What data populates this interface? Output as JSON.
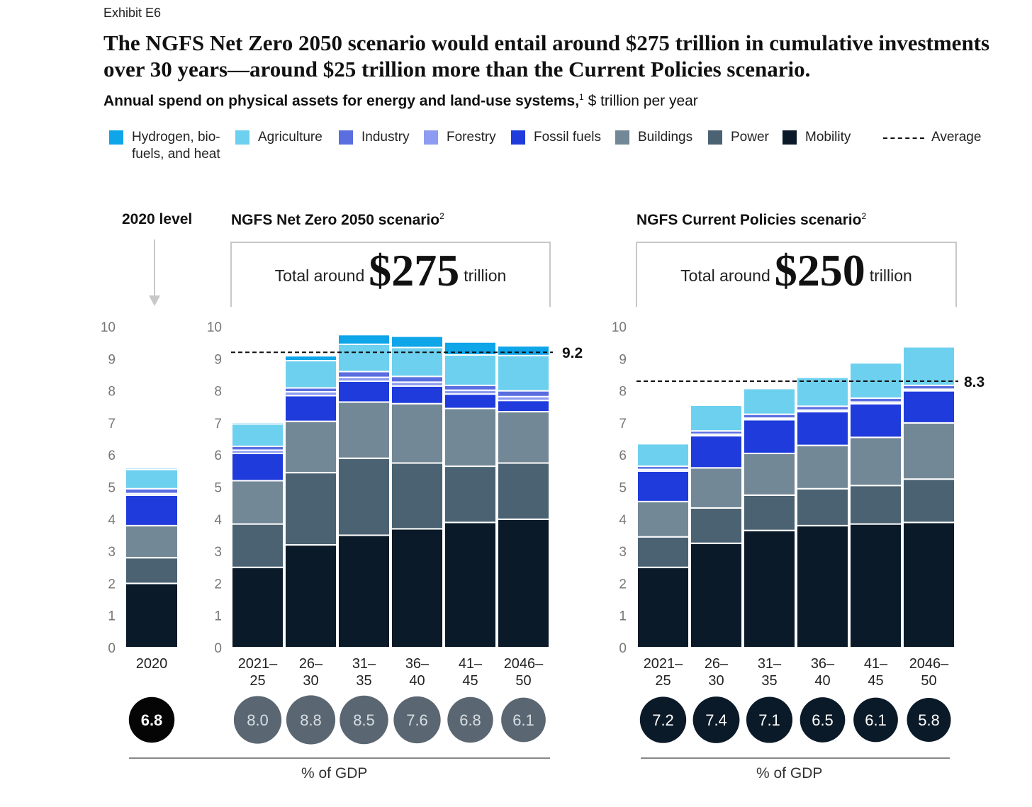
{
  "exhibit": "Exhibit E6",
  "title": "The NGFS Net Zero 2050 scenario would entail around $275 trillion in cumulative investments over 30 years—around $25 trillion more than the Current Policies scenario.",
  "subtitle": {
    "bold": "Annual spend on physical assets for energy and land-use systems,",
    "footnote": "1",
    "rest": " $ trillion per year"
  },
  "legend": {
    "items": [
      {
        "label": "Hydrogen, bio-\nfuels, and heat",
        "color": "#0ea5e9"
      },
      {
        "label": "Agriculture",
        "color": "#6dd0ee"
      },
      {
        "label": "Industry",
        "color": "#5a6ee0"
      },
      {
        "label": "Forestry",
        "color": "#8d9cf0"
      },
      {
        "label": "Fossil fuels",
        "color": "#1f3bdc"
      },
      {
        "label": "Buildings",
        "color": "#738896"
      },
      {
        "label": "Power",
        "color": "#4b6272"
      },
      {
        "label": "Mobility",
        "color": "#0b1a28"
      }
    ],
    "average_label": "Average"
  },
  "panels": {
    "level2020": {
      "title": "2020 level"
    },
    "netzero": {
      "title": "NGFS Net Zero 2050 scenario",
      "footnote": "2",
      "total_prefix": "Total around",
      "total_value": "$275",
      "total_suffix": "trillion"
    },
    "current": {
      "title": "NGFS Current Policies scenario",
      "footnote": "2",
      "total_prefix": "Total around",
      "total_value": "$250",
      "total_suffix": "trillion"
    }
  },
  "gdp_label": "% of GDP",
  "chart_data": [
    {
      "type": "bar",
      "stacked": true,
      "name": "2020 level",
      "ylim": [
        0,
        10
      ],
      "yticks": [
        "0",
        "1",
        "2",
        "3",
        "4",
        "5",
        "6",
        "7",
        "8",
        "9",
        "10"
      ],
      "categories": [
        [
          "2020"
        ]
      ],
      "series_order": [
        "Mobility",
        "Power",
        "Buildings",
        "Fossil fuels",
        "Forestry",
        "Industry",
        "Agriculture",
        "Hydrogen, bio-fuels, and heat"
      ],
      "series": [
        {
          "name": "Mobility",
          "values": [
            2.0
          ]
        },
        {
          "name": "Power",
          "values": [
            0.8
          ]
        },
        {
          "name": "Buildings",
          "values": [
            1.0
          ]
        },
        {
          "name": "Fossil fuels",
          "values": [
            0.95
          ]
        },
        {
          "name": "Forestry",
          "values": [
            0.05
          ]
        },
        {
          "name": "Industry",
          "values": [
            0.15
          ]
        },
        {
          "name": "Agriculture",
          "values": [
            0.6
          ]
        },
        {
          "name": "Hydrogen, bio-fuels, and heat",
          "values": [
            0.05
          ]
        }
      ],
      "gdp_percent": [
        "6.8"
      ],
      "gdp_style": "black"
    },
    {
      "type": "bar",
      "stacked": true,
      "name": "NGFS Net Zero 2050 scenario",
      "ylim": [
        0,
        10
      ],
      "yticks": [
        "0",
        "1",
        "2",
        "3",
        "4",
        "5",
        "6",
        "7",
        "8",
        "9",
        "10"
      ],
      "categories": [
        [
          "2021–",
          "25"
        ],
        [
          "26–",
          "30"
        ],
        [
          "31–",
          "35"
        ],
        [
          "36–",
          "40"
        ],
        [
          "41–",
          "45"
        ],
        [
          "2046–",
          "50"
        ]
      ],
      "series": [
        {
          "name": "Mobility",
          "values": [
            2.5,
            3.2,
            3.5,
            3.7,
            3.9,
            4.0
          ]
        },
        {
          "name": "Power",
          "values": [
            1.35,
            2.25,
            2.4,
            2.05,
            1.75,
            1.75
          ]
        },
        {
          "name": "Buildings",
          "values": [
            1.35,
            1.6,
            1.75,
            1.85,
            1.8,
            1.6
          ]
        },
        {
          "name": "Fossil fuels",
          "values": [
            0.85,
            0.8,
            0.65,
            0.55,
            0.45,
            0.35
          ]
        },
        {
          "name": "Forestry",
          "values": [
            0.1,
            0.12,
            0.12,
            0.12,
            0.12,
            0.12
          ]
        },
        {
          "name": "Industry",
          "values": [
            0.12,
            0.12,
            0.18,
            0.18,
            0.15,
            0.18
          ]
        },
        {
          "name": "Agriculture",
          "values": [
            0.7,
            0.85,
            0.85,
            0.9,
            0.95,
            1.1
          ]
        },
        {
          "name": "Hydrogen, bio-fuels, and heat",
          "values": [
            0.05,
            0.15,
            0.3,
            0.35,
            0.4,
            0.3
          ]
        }
      ],
      "average": 9.2,
      "average_label": "9.2",
      "gdp_percent": [
        "8.0",
        "8.8",
        "8.5",
        "7.6",
        "6.8",
        "6.1"
      ],
      "gdp_style": "gray"
    },
    {
      "type": "bar",
      "stacked": true,
      "name": "NGFS Current Policies scenario",
      "ylim": [
        0,
        10
      ],
      "yticks": [
        "0",
        "1",
        "2",
        "3",
        "4",
        "5",
        "6",
        "7",
        "8",
        "9",
        "10"
      ],
      "categories": [
        [
          "2021–",
          "25"
        ],
        [
          "26–",
          "30"
        ],
        [
          "31–",
          "35"
        ],
        [
          "36–",
          "40"
        ],
        [
          "41–",
          "45"
        ],
        [
          "2046–",
          "50"
        ]
      ],
      "series": [
        {
          "name": "Mobility",
          "values": [
            2.5,
            3.25,
            3.65,
            3.8,
            3.85,
            3.9
          ]
        },
        {
          "name": "Power",
          "values": [
            0.95,
            1.1,
            1.1,
            1.15,
            1.2,
            1.35
          ]
        },
        {
          "name": "Buildings",
          "values": [
            1.1,
            1.25,
            1.3,
            1.35,
            1.5,
            1.75
          ]
        },
        {
          "name": "Fossil fuels",
          "values": [
            0.95,
            1.0,
            1.05,
            1.05,
            1.05,
            1.0
          ]
        },
        {
          "name": "Forestry",
          "values": [
            0.05,
            0.05,
            0.05,
            0.05,
            0.05,
            0.05
          ]
        },
        {
          "name": "Industry",
          "values": [
            0.1,
            0.1,
            0.12,
            0.12,
            0.12,
            0.12
          ]
        },
        {
          "name": "Agriculture",
          "values": [
            0.7,
            0.8,
            0.8,
            0.9,
            1.1,
            1.2
          ]
        },
        {
          "name": "Hydrogen, bio-fuels, and heat",
          "values": [
            0.0,
            0.0,
            0.0,
            0.0,
            0.0,
            0.0
          ]
        }
      ],
      "average": 8.3,
      "average_label": "8.3",
      "gdp_percent": [
        "7.2",
        "7.4",
        "7.1",
        "6.5",
        "6.1",
        "5.8"
      ],
      "gdp_style": "navy"
    }
  ]
}
